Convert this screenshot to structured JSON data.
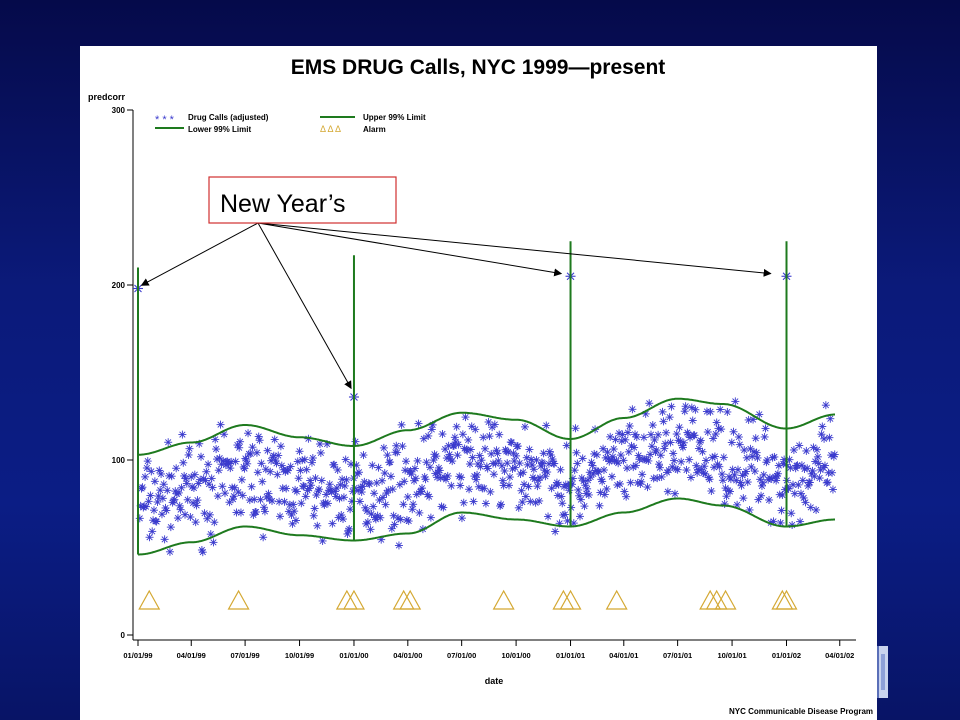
{
  "chart_data": {
    "type": "scatter",
    "title": "EMS DRUG Calls, NYC 1999—present",
    "xlabel": "date",
    "ylabel": "predcorr",
    "xlim": [
      "1999-01-01",
      "2002-04-20"
    ],
    "ylim": [
      0,
      300
    ],
    "x_ticks": [
      "01/01/99",
      "04/01/99",
      "07/01/99",
      "10/01/99",
      "01/01/00",
      "04/01/00",
      "07/01/00",
      "10/01/00",
      "01/01/01",
      "04/01/01",
      "07/01/01",
      "10/01/01",
      "01/01/02",
      "04/01/02"
    ],
    "y_ticks": [
      0,
      100,
      200,
      300
    ],
    "legend": [
      {
        "label": "Drug Calls (adjusted)",
        "symbol": "* * *",
        "color": "#3a3acd"
      },
      {
        "label": "Upper 99% Limit",
        "symbol": "line",
        "color": "#1e7a1e"
      },
      {
        "label": "Lower 99% Limit",
        "symbol": "line",
        "color": "#1e7a1e"
      },
      {
        "label": "Alarm",
        "symbol": "Δ Δ Δ",
        "color": "#d4a832"
      }
    ],
    "legend_position": "top-left",
    "series": [
      {
        "name": "Upper 99% Limit",
        "x": [
          "1999-01-01",
          "1999-04-01",
          "1999-07-01",
          "1999-10-01",
          "1999-12-31",
          "2000-04-01",
          "2000-07-01",
          "2000-10-01",
          "2000-12-31",
          "2001-04-01",
          "2001-07-01",
          "2001-09-15",
          "2001-12-31",
          "2002-03-25"
        ],
        "y": [
          103,
          110,
          120,
          113,
          108,
          117,
          127,
          123,
          112,
          124,
          135,
          132,
          118,
          126
        ]
      },
      {
        "name": "Lower 99% Limit",
        "x": [
          "1999-01-01",
          "1999-04-01",
          "1999-07-01",
          "1999-10-01",
          "1999-12-31",
          "2000-04-01",
          "2000-07-01",
          "2000-10-01",
          "2000-12-31",
          "2001-04-01",
          "2001-07-01",
          "2001-09-15",
          "2001-12-31",
          "2002-03-25"
        ],
        "y": [
          46,
          53,
          62,
          57,
          54,
          58,
          70,
          66,
          62,
          70,
          78,
          74,
          62,
          66
        ]
      },
      {
        "name": "Drug Calls (adjusted)",
        "type": "scatter",
        "highlighted_points": [
          {
            "x": "1999-01-01",
            "y": 198
          },
          {
            "x": "2000-01-01",
            "y": 136
          },
          {
            "x": "2001-01-01",
            "y": 205
          },
          {
            "x": "2002-01-01",
            "y": 205
          }
        ]
      },
      {
        "name": "Alarm",
        "x": [
          "1999-01-20",
          "1999-06-20",
          "1999-12-20",
          "2000-01-01",
          "2000-03-25",
          "2000-04-05",
          "2000-09-10",
          "2000-12-20",
          "2001-01-01",
          "2001-03-20",
          "2001-08-25",
          "2001-09-05",
          "2001-09-20",
          "2001-12-25",
          "2002-01-01"
        ],
        "y": [
          20,
          20,
          20,
          20,
          20,
          20,
          20,
          20,
          20,
          20,
          20,
          20,
          20,
          20,
          20
        ]
      }
    ],
    "annotations": [
      {
        "text": "New Year’s",
        "targets": [
          "1999-01-01",
          "2000-01-01",
          "2001-01-01",
          "2002-01-01"
        ]
      }
    ],
    "footer": "NYC Communicable Disease Program",
    "grid": false
  },
  "colors": {
    "data_points": "#3a3acd",
    "limits": "#1e7a1e",
    "alarm": "#d4a832",
    "callout_border": "#d03030",
    "background": "#0b1a7a"
  }
}
